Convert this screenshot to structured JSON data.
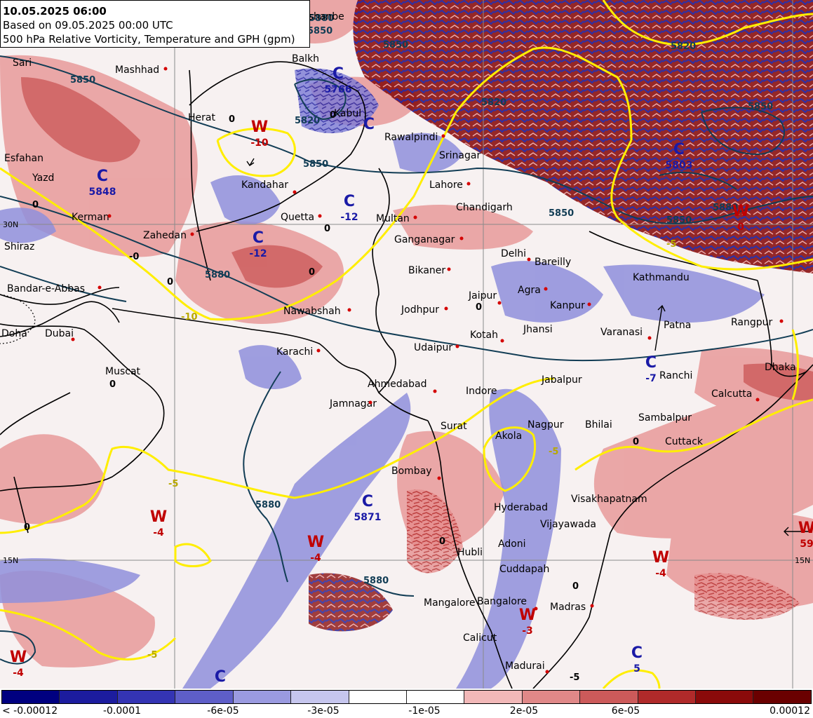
{
  "header": {
    "valid_time": "10.05.2025 06:00",
    "base_time": "Based on 09.05.2025 00:00 UTC",
    "product": "500 hPa Relative Vorticity, Temperature and GPH (gpm)"
  },
  "colors": {
    "land_border": "#000000",
    "gph_contour": "#123d55",
    "temp_contour": "#ffee00",
    "grid": "#8a8a8a",
    "high_label": "#c00000",
    "low_label": "#1a1aa6",
    "city_dot": "#d40000"
  },
  "legend": {
    "colors": [
      "#000080",
      "#1c1c9e",
      "#3434b4",
      "#5e5ec8",
      "#9a9ae0",
      "#c6c6ee",
      "#ffffff",
      "#ffffff",
      "#f2b8b8",
      "#e08888",
      "#cc5a5a",
      "#b02a2a",
      "#8a0a0a",
      "#6a0000"
    ],
    "labels": [
      "< -0.00012",
      "-0.0001",
      "-6e-05",
      "-3e-05",
      "-1e-05",
      "2e-05",
      "6e-05",
      "0.00012"
    ]
  },
  "grid_labels": [
    "30N",
    "15N",
    "15N"
  ],
  "cities": [
    {
      "name": "Dushanbe"
    },
    {
      "name": "Balkh"
    },
    {
      "name": "Sari"
    },
    {
      "name": "Mashhad"
    },
    {
      "name": "Kabul"
    },
    {
      "name": "Herat"
    },
    {
      "name": "Rawalpindi"
    },
    {
      "name": "Srinagar"
    },
    {
      "name": "Esfahan"
    },
    {
      "name": "Yazd"
    },
    {
      "name": "Kandahar"
    },
    {
      "name": "Lahore"
    },
    {
      "name": "Kerman"
    },
    {
      "name": "Chandigarh"
    },
    {
      "name": "Quetta"
    },
    {
      "name": "Multan"
    },
    {
      "name": "Zahedan"
    },
    {
      "name": "Shiraz"
    },
    {
      "name": "Ganganagar"
    },
    {
      "name": "Delhi"
    },
    {
      "name": "Bareilly"
    },
    {
      "name": "Bikaner"
    },
    {
      "name": "Kathmandu"
    },
    {
      "name": "Bandar-e-Abbas"
    },
    {
      "name": "Agra"
    },
    {
      "name": "Jaipur"
    },
    {
      "name": "Kanpur"
    },
    {
      "name": "Nawabshah"
    },
    {
      "name": "Jodhpur"
    },
    {
      "name": "Patna"
    },
    {
      "name": "Rangpur"
    },
    {
      "name": "Doha"
    },
    {
      "name": "Dubai"
    },
    {
      "name": "Jhansi"
    },
    {
      "name": "Varanasi"
    },
    {
      "name": "Kotah"
    },
    {
      "name": "Karachi"
    },
    {
      "name": "Udaipur"
    },
    {
      "name": "Muscat"
    },
    {
      "name": "Dhaka"
    },
    {
      "name": "Ranchi"
    },
    {
      "name": "Jabalpur"
    },
    {
      "name": "Ahmedabad"
    },
    {
      "name": "Indore"
    },
    {
      "name": "Calcutta"
    },
    {
      "name": "Jamnagar"
    },
    {
      "name": "Sambalpur"
    },
    {
      "name": "Nagpur"
    },
    {
      "name": "Bhilai"
    },
    {
      "name": "Surat"
    },
    {
      "name": "Akola"
    },
    {
      "name": "Cuttack"
    },
    {
      "name": "Bombay"
    },
    {
      "name": "Hyderabad"
    },
    {
      "name": "Visakhapatnam"
    },
    {
      "name": "Vijayawada"
    },
    {
      "name": "Adoni"
    },
    {
      "name": "Hubli"
    },
    {
      "name": "Cuddapah"
    },
    {
      "name": "Bangalore"
    },
    {
      "name": "Mangalore"
    },
    {
      "name": "Madras"
    },
    {
      "name": "Calicut"
    },
    {
      "name": "Madurai"
    }
  ],
  "pressure_centers": [
    {
      "type": "C",
      "value": "5766"
    },
    {
      "type": "W",
      "value": "-10"
    },
    {
      "type": "C",
      "value": ""
    },
    {
      "type": "C",
      "value": "5848"
    },
    {
      "type": "C",
      "value": "-12"
    },
    {
      "type": "C",
      "value": "-12"
    },
    {
      "type": "C",
      "value": "5803"
    },
    {
      "type": "W",
      "value": "0"
    },
    {
      "type": "C",
      "value": "-7"
    },
    {
      "type": "C",
      "value": "5871"
    },
    {
      "type": "W",
      "value": "-4"
    },
    {
      "type": "W",
      "value": "-4"
    },
    {
      "type": "W",
      "value": "-3"
    },
    {
      "type": "W",
      "value": "-4"
    },
    {
      "type": "W",
      "value": "-4"
    },
    {
      "type": "C",
      "value": ""
    },
    {
      "type": "C",
      "value": "5"
    },
    {
      "type": "W",
      "value": "59"
    }
  ],
  "contour_labels": [
    "5850",
    "5850",
    "5820",
    "5850",
    "5880",
    "5880",
    "5880",
    "5850",
    "5820",
    "5850",
    "5850",
    "5850",
    "5880",
    "5820",
    "5880"
  ],
  "temp_labels": [
    "0",
    "0",
    "0",
    "0",
    "-0",
    "0",
    "0",
    "0",
    "0",
    "0",
    "0",
    "-10",
    "-5",
    "-5",
    "-5",
    "-5",
    "-5",
    "0",
    "0"
  ]
}
